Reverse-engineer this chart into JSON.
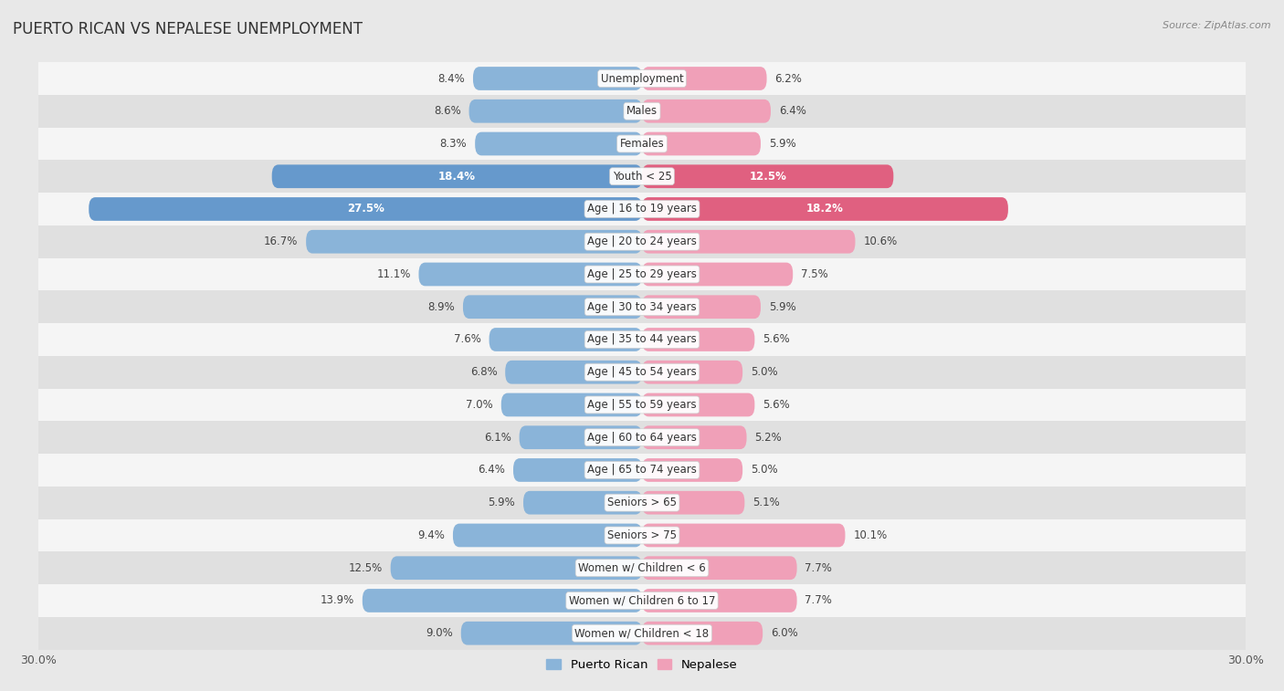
{
  "title": "PUERTO RICAN VS NEPALESE UNEMPLOYMENT",
  "source": "Source: ZipAtlas.com",
  "categories": [
    "Unemployment",
    "Males",
    "Females",
    "Youth < 25",
    "Age | 16 to 19 years",
    "Age | 20 to 24 years",
    "Age | 25 to 29 years",
    "Age | 30 to 34 years",
    "Age | 35 to 44 years",
    "Age | 45 to 54 years",
    "Age | 55 to 59 years",
    "Age | 60 to 64 years",
    "Age | 65 to 74 years",
    "Seniors > 65",
    "Seniors > 75",
    "Women w/ Children < 6",
    "Women w/ Children 6 to 17",
    "Women w/ Children < 18"
  ],
  "puerto_rican": [
    8.4,
    8.6,
    8.3,
    18.4,
    27.5,
    16.7,
    11.1,
    8.9,
    7.6,
    6.8,
    7.0,
    6.1,
    6.4,
    5.9,
    9.4,
    12.5,
    13.9,
    9.0
  ],
  "nepalese": [
    6.2,
    6.4,
    5.9,
    12.5,
    18.2,
    10.6,
    7.5,
    5.9,
    5.6,
    5.0,
    5.6,
    5.2,
    5.0,
    5.1,
    10.1,
    7.7,
    7.7,
    6.0
  ],
  "puerto_rican_color": "#8ab4d9",
  "nepalese_color": "#f0a0b8",
  "highlight_rows": [
    3,
    4
  ],
  "highlight_puerto_rican_color": "#6699cc",
  "highlight_nepalese_color": "#e06080",
  "background_color": "#e8e8e8",
  "row_bg_light": "#f5f5f5",
  "row_bg_dark": "#e0e0e0",
  "axis_limit": 30.0,
  "label_fontsize": 8.5,
  "category_fontsize": 8.5,
  "title_fontsize": 12,
  "legend_fontsize": 9.5,
  "bar_height": 0.72
}
